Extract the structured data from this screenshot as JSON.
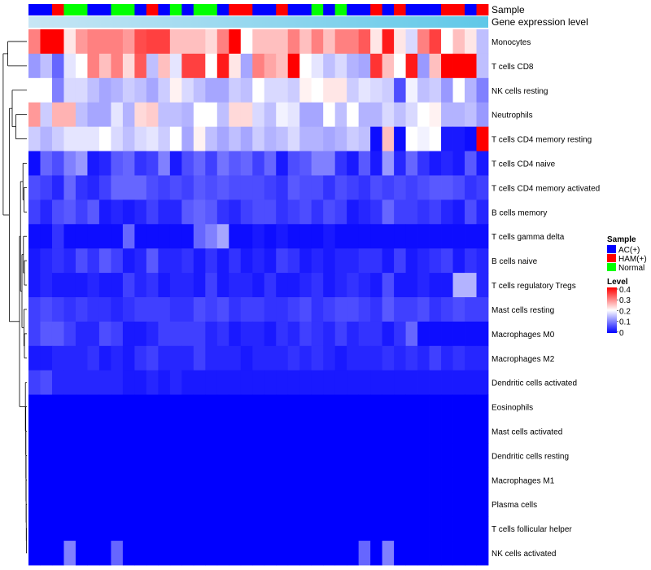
{
  "chart_data": {
    "type": "heatmap",
    "title": "",
    "annotation_labels": {
      "sample": "Sample",
      "expression": "Gene expression level"
    },
    "colors": {
      "sample": {
        "AC(+)": "#0000ff",
        "HAM(+)": "#ff0000",
        "Normal": "#00ff00"
      },
      "expression_bar": [
        "#c8e6f5",
        "#5fc8e8"
      ],
      "scale_low": "#0000ff",
      "scale_mid": "#ffffff",
      "scale_high": "#ff0000",
      "dendrogram": "#000000"
    },
    "samples": [
      "AC(+)",
      "AC(+)",
      "HAM(+)",
      "Normal",
      "Normal",
      "AC(+)",
      "AC(+)",
      "Normal",
      "Normal",
      "AC(+)",
      "HAM(+)",
      "AC(+)",
      "Normal",
      "AC(+)",
      "Normal",
      "Normal",
      "AC(+)",
      "HAM(+)",
      "HAM(+)",
      "AC(+)",
      "AC(+)",
      "HAM(+)",
      "AC(+)",
      "AC(+)",
      "Normal",
      "AC(+)",
      "Normal",
      "AC(+)",
      "AC(+)",
      "HAM(+)",
      "AC(+)",
      "HAM(+)",
      "AC(+)",
      "AC(+)",
      "AC(+)",
      "HAM(+)",
      "HAM(+)",
      "AC(+)",
      "HAM(+)"
    ],
    "rows": [
      "Monocytes",
      "T cells CD8",
      "NK cells resting",
      "Neutrophils",
      "T cells CD4 memory resting",
      "T cells CD4 naive",
      "T cells CD4 memory activated",
      "B cells memory",
      "T cells gamma delta",
      "B cells naive",
      "T cells regulatory  Tregs",
      "Mast cells resting",
      "Macrophages M0",
      "Macrophages M2",
      "Dendritic cells activated",
      "Eosinophils",
      "Mast cells activated",
      "Dendritic cells resting",
      "Macrophages M1",
      "Plasma cells",
      "T cells follicular helper",
      "NK cells activated"
    ],
    "legend": {
      "sample_title": "Sample",
      "sample_entries": [
        "AC(+)",
        "HAM(+)",
        "Normal"
      ],
      "level_title": "Level",
      "level_ticks": [
        "0.4",
        "0.3",
        "0.2",
        "0.1",
        "0"
      ],
      "level_range": [
        0,
        0.4
      ]
    },
    "values": [
      [
        0.3,
        0.4,
        0.4,
        0.22,
        0.28,
        0.3,
        0.3,
        0.3,
        0.28,
        0.34,
        0.35,
        0.35,
        0.25,
        0.25,
        0.25,
        0.23,
        0.3,
        0.4,
        0.2,
        0.25,
        0.25,
        0.25,
        0.3,
        0.25,
        0.3,
        0.25,
        0.3,
        0.3,
        0.33,
        0.22,
        0.38,
        0.22,
        0.17,
        0.3,
        0.35,
        0.2,
        0.25,
        0.22,
        0.15
      ],
      [
        0.12,
        0.15,
        0.08,
        0.18,
        0.2,
        0.3,
        0.25,
        0.3,
        0.23,
        0.33,
        0.15,
        0.25,
        0.18,
        0.35,
        0.35,
        0.2,
        0.38,
        0.22,
        0.13,
        0.3,
        0.27,
        0.25,
        0.4,
        0.2,
        0.18,
        0.15,
        0.17,
        0.14,
        0.13,
        0.36,
        0.25,
        0.2,
        0.38,
        0.12,
        0.25,
        0.4,
        0.4,
        0.4,
        0.15
      ],
      [
        0.2,
        0.2,
        0.1,
        0.17,
        0.17,
        0.15,
        0.13,
        0.14,
        0.16,
        0.15,
        0.13,
        0.16,
        0.21,
        0.17,
        0.15,
        0.13,
        0.13,
        0.16,
        0.15,
        0.2,
        0.17,
        0.17,
        0.16,
        0.21,
        0.2,
        0.22,
        0.22,
        0.16,
        0.18,
        0.17,
        0.16,
        0.06,
        0.19,
        0.15,
        0.16,
        0.12,
        0.2,
        0.14,
        0.1
      ],
      [
        0.28,
        0.16,
        0.26,
        0.26,
        0.15,
        0.13,
        0.13,
        0.18,
        0.14,
        0.23,
        0.24,
        0.15,
        0.15,
        0.14,
        0.2,
        0.2,
        0.15,
        0.23,
        0.23,
        0.17,
        0.15,
        0.19,
        0.18,
        0.13,
        0.13,
        0.2,
        0.15,
        0.2,
        0.14,
        0.14,
        0.17,
        0.15,
        0.17,
        0.2,
        0.21,
        0.14,
        0.14,
        0.15,
        0.12
      ],
      [
        0.16,
        0.14,
        0.16,
        0.18,
        0.18,
        0.18,
        0.2,
        0.17,
        0.15,
        0.17,
        0.18,
        0.16,
        0.2,
        0.13,
        0.21,
        0.15,
        0.13,
        0.15,
        0.13,
        0.16,
        0.14,
        0.15,
        0.17,
        0.14,
        0.14,
        0.13,
        0.14,
        0.16,
        0.15,
        0.01,
        0.25,
        0.01,
        0.2,
        0.19,
        0.2,
        0.02,
        0.02,
        0.01,
        0.4
      ],
      [
        0.01,
        0.08,
        0.06,
        0.1,
        0.12,
        0.02,
        0.03,
        0.07,
        0.08,
        0.04,
        0.05,
        0.1,
        0.02,
        0.06,
        0.08,
        0.05,
        0.09,
        0.07,
        0.08,
        0.05,
        0.08,
        0.02,
        0.06,
        0.07,
        0.1,
        0.1,
        0.04,
        0.02,
        0.07,
        0.02,
        0.12,
        0.03,
        0.08,
        0.04,
        0.02,
        0.03,
        0.02,
        0.07,
        0.02
      ],
      [
        0.06,
        0.05,
        0.03,
        0.08,
        0.04,
        0.03,
        0.05,
        0.08,
        0.08,
        0.08,
        0.06,
        0.05,
        0.06,
        0.05,
        0.07,
        0.06,
        0.07,
        0.06,
        0.06,
        0.06,
        0.05,
        0.04,
        0.07,
        0.06,
        0.06,
        0.04,
        0.06,
        0.05,
        0.04,
        0.06,
        0.05,
        0.06,
        0.05,
        0.06,
        0.07,
        0.07,
        0.06,
        0.04,
        0.05
      ],
      [
        0.05,
        0.03,
        0.06,
        0.07,
        0.05,
        0.07,
        0.02,
        0.03,
        0.02,
        0.03,
        0.05,
        0.03,
        0.03,
        0.07,
        0.08,
        0.07,
        0.04,
        0.03,
        0.05,
        0.06,
        0.06,
        0.04,
        0.05,
        0.06,
        0.04,
        0.06,
        0.05,
        0.02,
        0.03,
        0.04,
        0.08,
        0.05,
        0.05,
        0.04,
        0.05,
        0.03,
        0.02,
        0.06,
        0.03
      ],
      [
        0.01,
        0.01,
        0.04,
        0.01,
        0.01,
        0.01,
        0.01,
        0.01,
        0.08,
        0.01,
        0.01,
        0.01,
        0.01,
        0.01,
        0.08,
        0.1,
        0.13,
        0.01,
        0.01,
        0.02,
        0.01,
        0.02,
        0.01,
        0.01,
        0.01,
        0.02,
        0.01,
        0.01,
        0.01,
        0.01,
        0.01,
        0.01,
        0.01,
        0.01,
        0.01,
        0.01,
        0.01,
        0.01,
        0.01
      ],
      [
        0.02,
        0.03,
        0.04,
        0.03,
        0.06,
        0.04,
        0.07,
        0.05,
        0.02,
        0.03,
        0.07,
        0.03,
        0.03,
        0.04,
        0.02,
        0.04,
        0.02,
        0.04,
        0.02,
        0.03,
        0.02,
        0.05,
        0.04,
        0.02,
        0.03,
        0.02,
        0.03,
        0.03,
        0.04,
        0.04,
        0.02,
        0.05,
        0.02,
        0.03,
        0.04,
        0.05,
        0.02,
        0.04,
        0.03
      ],
      [
        0.02,
        0.03,
        0.02,
        0.02,
        0.02,
        0.03,
        0.02,
        0.02,
        0.05,
        0.03,
        0.04,
        0.02,
        0.03,
        0.03,
        0.02,
        0.05,
        0.02,
        0.03,
        0.03,
        0.02,
        0.04,
        0.02,
        0.02,
        0.03,
        0.04,
        0.02,
        0.03,
        0.04,
        0.03,
        0.02,
        0.06,
        0.02,
        0.02,
        0.03,
        0.02,
        0.02,
        0.14,
        0.14,
        0.03
      ],
      [
        0.05,
        0.06,
        0.05,
        0.04,
        0.05,
        0.04,
        0.04,
        0.03,
        0.04,
        0.05,
        0.05,
        0.05,
        0.04,
        0.04,
        0.06,
        0.05,
        0.06,
        0.04,
        0.05,
        0.05,
        0.04,
        0.04,
        0.05,
        0.06,
        0.04,
        0.05,
        0.06,
        0.06,
        0.05,
        0.04,
        0.07,
        0.05,
        0.05,
        0.06,
        0.04,
        0.05,
        0.06,
        0.05,
        0.05
      ],
      [
        0.05,
        0.07,
        0.07,
        0.05,
        0.03,
        0.03,
        0.06,
        0.05,
        0.02,
        0.02,
        0.03,
        0.05,
        0.05,
        0.05,
        0.05,
        0.03,
        0.04,
        0.02,
        0.03,
        0.03,
        0.02,
        0.04,
        0.03,
        0.05,
        0.04,
        0.03,
        0.05,
        0.03,
        0.04,
        0.04,
        0.02,
        0.04,
        0.08,
        0.01,
        0.01,
        0.01,
        0.01,
        0.01,
        0.01
      ],
      [
        0.02,
        0.02,
        0.03,
        0.03,
        0.03,
        0.04,
        0.02,
        0.03,
        0.02,
        0.04,
        0.05,
        0.03,
        0.03,
        0.03,
        0.05,
        0.03,
        0.03,
        0.03,
        0.02,
        0.03,
        0.03,
        0.03,
        0.04,
        0.03,
        0.04,
        0.03,
        0.02,
        0.03,
        0.03,
        0.03,
        0.04,
        0.03,
        0.04,
        0.03,
        0.05,
        0.03,
        0.04,
        0.03,
        0.03
      ],
      [
        0.05,
        0.06,
        0.03,
        0.03,
        0.03,
        0.03,
        0.03,
        0.03,
        0.02,
        0.02,
        0.03,
        0.02,
        0.03,
        0.02,
        0.02,
        0.02,
        0.02,
        0.02,
        0.02,
        0.02,
        0.02,
        0.02,
        0.02,
        0.02,
        0.02,
        0.02,
        0.02,
        0.02,
        0.02,
        0.02,
        0.02,
        0.02,
        0.02,
        0.02,
        0.02,
        0.02,
        0.02,
        0.02,
        0.02
      ],
      [
        0,
        0,
        0,
        0,
        0,
        0,
        0,
        0,
        0,
        0,
        0,
        0,
        0,
        0,
        0,
        0,
        0,
        0,
        0,
        0,
        0,
        0,
        0,
        0,
        0,
        0,
        0,
        0,
        0,
        0,
        0,
        0,
        0,
        0,
        0,
        0,
        0,
        0,
        0
      ],
      [
        0,
        0,
        0,
        0,
        0,
        0,
        0,
        0,
        0,
        0,
        0,
        0,
        0,
        0,
        0,
        0,
        0,
        0,
        0,
        0,
        0,
        0,
        0,
        0,
        0,
        0,
        0,
        0,
        0,
        0,
        0,
        0,
        0,
        0,
        0,
        0,
        0,
        0,
        0
      ],
      [
        0,
        0,
        0,
        0,
        0,
        0,
        0,
        0,
        0,
        0,
        0,
        0,
        0,
        0,
        0,
        0,
        0,
        0,
        0,
        0,
        0,
        0,
        0,
        0,
        0,
        0,
        0,
        0,
        0,
        0,
        0,
        0,
        0,
        0,
        0,
        0,
        0,
        0,
        0
      ],
      [
        0,
        0,
        0,
        0,
        0,
        0,
        0,
        0,
        0,
        0,
        0,
        0,
        0,
        0,
        0,
        0,
        0,
        0,
        0,
        0,
        0,
        0,
        0,
        0,
        0,
        0,
        0,
        0,
        0,
        0,
        0,
        0,
        0,
        0,
        0,
        0,
        0,
        0,
        0
      ],
      [
        0,
        0,
        0,
        0,
        0,
        0,
        0,
        0,
        0,
        0,
        0,
        0,
        0,
        0,
        0,
        0,
        0,
        0,
        0,
        0,
        0,
        0,
        0,
        0,
        0,
        0,
        0,
        0,
        0,
        0,
        0,
        0,
        0,
        0,
        0,
        0,
        0,
        0,
        0
      ],
      [
        0,
        0,
        0,
        0,
        0,
        0,
        0,
        0,
        0,
        0,
        0,
        0,
        0,
        0,
        0,
        0,
        0,
        0,
        0,
        0,
        0,
        0,
        0,
        0,
        0,
        0,
        0,
        0,
        0,
        0,
        0,
        0,
        0,
        0,
        0,
        0,
        0,
        0,
        0
      ],
      [
        0,
        0,
        0,
        0.1,
        0,
        0,
        0,
        0.08,
        0,
        0,
        0,
        0,
        0,
        0,
        0,
        0,
        0,
        0,
        0,
        0,
        0,
        0,
        0,
        0,
        0,
        0,
        0,
        0,
        0.08,
        0,
        0.1,
        0,
        0,
        0,
        0,
        0,
        0,
        0,
        0
      ]
    ]
  }
}
